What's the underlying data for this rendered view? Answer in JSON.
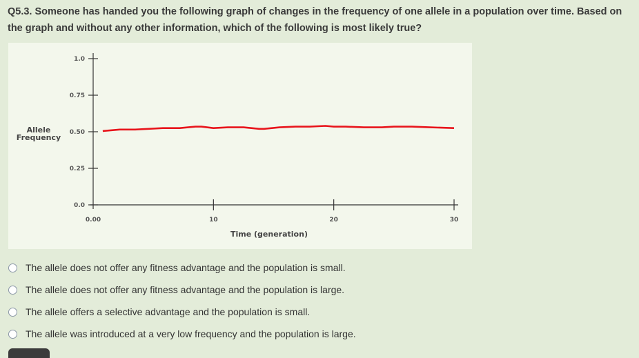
{
  "question": {
    "text": "Q5.3. Someone has handed you the following graph of changes in the frequency of one allele in a population over time. Based on the graph and without any other information, which of the following is most likely true?"
  },
  "chart_data": {
    "type": "line",
    "xlabel": "Time (generation)",
    "ylabel": "Allele Frequency",
    "xlim": [
      0,
      30
    ],
    "ylim": [
      0,
      1.0
    ],
    "x_ticks": [
      "0.00",
      "10",
      "20",
      "30"
    ],
    "x_tick_values": [
      0,
      10,
      20,
      30
    ],
    "y_ticks": [
      "0.0",
      "0.25",
      "0.50",
      "0.75",
      "1.0"
    ],
    "y_tick_values": [
      0,
      0.25,
      0.5,
      0.75,
      1.0
    ],
    "grid": false,
    "series": [
      {
        "color": "#e8141b",
        "x": [
          0.8,
          2.2,
          3.5,
          5.8,
          7.2,
          8.5,
          9.0,
          10.0,
          11.2,
          12.5,
          13.8,
          14.2,
          15.5,
          16.8,
          18.0,
          19.3,
          20.0,
          21.0,
          22.5,
          24.0,
          25.0,
          26.5,
          28.0,
          30.0
        ],
        "y": [
          0.505,
          0.515,
          0.515,
          0.525,
          0.525,
          0.535,
          0.535,
          0.525,
          0.53,
          0.53,
          0.52,
          0.52,
          0.53,
          0.535,
          0.535,
          0.54,
          0.535,
          0.535,
          0.53,
          0.53,
          0.535,
          0.535,
          0.53,
          0.525
        ]
      }
    ]
  },
  "options": [
    {
      "label": "The allele does not offer any fitness advantage and the population is small."
    },
    {
      "label": "The allele does not offer any fitness advantage and the population is large."
    },
    {
      "label": "The allele offers a selective advantage and the population is small."
    },
    {
      "label": "The allele was introduced at a very low frequency and the population is large."
    }
  ],
  "colors": {
    "page_background": "#e3ecd9",
    "graph_background": "#f3f7ec",
    "line": "#e8141b"
  }
}
